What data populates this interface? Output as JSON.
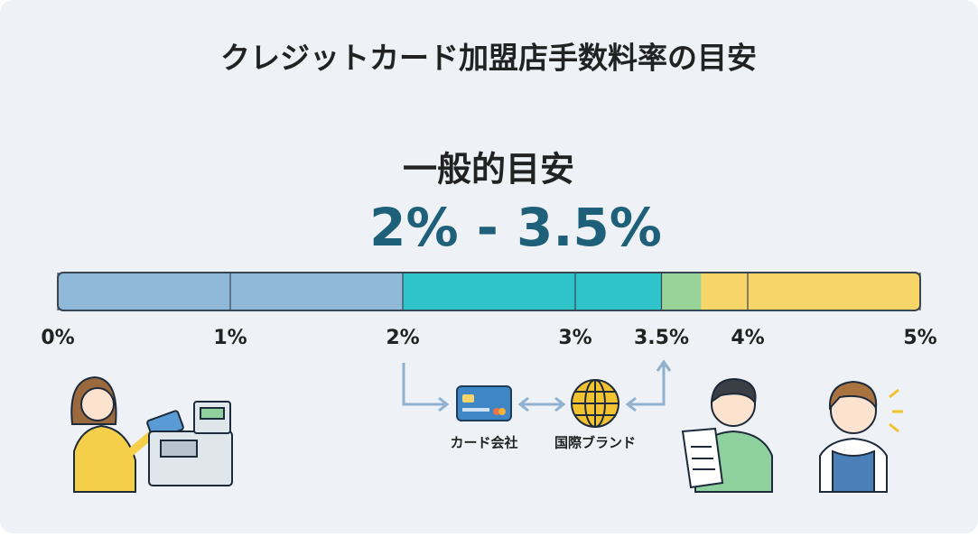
{
  "chart_data": {
    "type": "range-bar",
    "title": "クレジットカード加盟店手数料率の目安",
    "subtitle": "一般的目安",
    "highlight": "2% - 3.5%",
    "xlim": [
      0,
      5
    ],
    "xticks": [
      {
        "value": 0,
        "label": "0%"
      },
      {
        "value": 1,
        "label": "1%"
      },
      {
        "value": 2,
        "label": "2%"
      },
      {
        "value": 3,
        "label": "3%"
      },
      {
        "value": 3.5,
        "label": "3.5%"
      },
      {
        "value": 4,
        "label": "4%"
      },
      {
        "value": 5,
        "label": "5%"
      }
    ],
    "segments": [
      {
        "color": "#8fb8d9",
        "range": [
          0,
          2
        ]
      },
      {
        "color": "#2ec4c9",
        "range": [
          2,
          3.5
        ]
      },
      {
        "color": "#98d49a",
        "range": [
          3.5,
          3.73
        ]
      },
      {
        "color": "#f7d568",
        "range": [
          3.73,
          5
        ]
      }
    ],
    "annotations": [
      "カード会社",
      "国際ブランド"
    ]
  }
}
